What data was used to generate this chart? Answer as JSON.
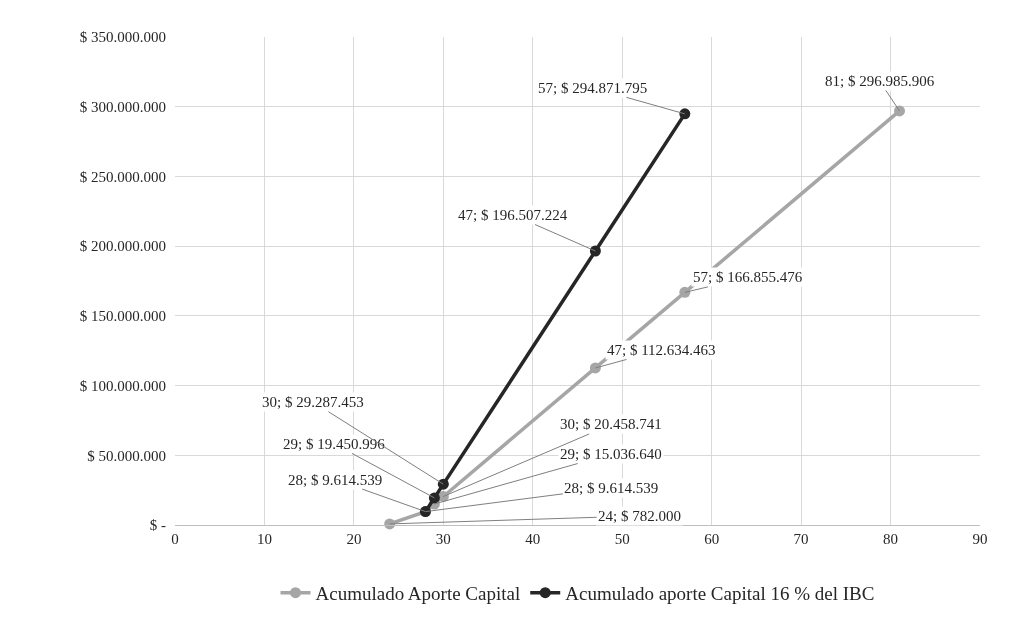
{
  "chart_data": {
    "type": "line",
    "xlim": [
      0,
      90
    ],
    "xticks": [
      0,
      10,
      20,
      30,
      40,
      50,
      60,
      70,
      80,
      90
    ],
    "ylim": [
      0,
      350000000
    ],
    "yticks": [
      {
        "value": 0,
        "label": "$ -"
      },
      {
        "value": 50000000,
        "label": "$ 50.000.000"
      },
      {
        "value": 100000000,
        "label": "$ 100.000.000"
      },
      {
        "value": 150000000,
        "label": "$ 150.000.000"
      },
      {
        "value": 200000000,
        "label": "$ 200.000.000"
      },
      {
        "value": 250000000,
        "label": "$ 250.000.000"
      },
      {
        "value": 300000000,
        "label": "$ 300.000.000"
      },
      {
        "value": 350000000,
        "label": "$ 350.000.000"
      }
    ],
    "grid": true,
    "legend": "bottom",
    "marker": "circle",
    "line_style": "solid",
    "series": [
      {
        "name": "Acumulado Aporte Capital",
        "color": "#a6a6a6",
        "x": [
          24,
          28,
          29,
          30,
          47,
          57,
          81
        ],
        "values": [
          782000,
          9614539,
          15036640,
          20458741,
          112634463,
          166855476,
          296985906
        ],
        "value_labels": [
          "24; $ 782.000",
          "28; $ 9.614.539",
          "29; $ 15.036.640",
          "30; $ 20.458.741",
          "47; $ 112.634.463",
          "57; $ 166.855.476",
          "81; $ 296.985.906"
        ]
      },
      {
        "name": "Acumulado aporte Capital 16 % del IBC",
        "color": "#262626",
        "x": [
          28,
          29,
          30,
          47,
          57
        ],
        "values": [
          9614539,
          19450996,
          29287453,
          196507224,
          294871795
        ],
        "value_labels": [
          "28; $ 9.614.539",
          "29; $ 19.450.996",
          "30; $ 29.287.453",
          "47; $ 196.507.224",
          "57; $ 294.871.795"
        ]
      }
    ]
  }
}
